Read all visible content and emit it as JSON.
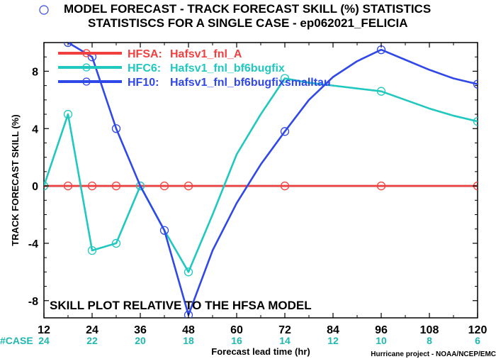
{
  "chart_data": {
    "type": "line",
    "title_line1": "MODEL FORECAST - TRACK FORECAST SKILL (%) STATISTICS",
    "title_line2": "STATISTISCS FOR A SINGLE CASE - ep062021_FELICIA",
    "xlabel": "Forecast lead time (hr)",
    "ylabel": "TRACK FORECAST SKILL (%)",
    "xlim": [
      12,
      120
    ],
    "ylim": [
      -9.2,
      10
    ],
    "xticks": [
      12,
      24,
      36,
      48,
      60,
      72,
      84,
      96,
      108,
      120
    ],
    "yticks": [
      -8,
      -4,
      0,
      4,
      8
    ],
    "case_label": "#CASE",
    "case_counts": [
      {
        "x": 12,
        "n": "24"
      },
      {
        "x": 24,
        "n": "22"
      },
      {
        "x": 36,
        "n": "20"
      },
      {
        "x": 48,
        "n": "18"
      },
      {
        "x": 60,
        "n": "16"
      },
      {
        "x": 72,
        "n": "14"
      },
      {
        "x": 84,
        "n": "12"
      },
      {
        "x": 96,
        "n": "10"
      },
      {
        "x": 108,
        "n": "8"
      },
      {
        "x": 120,
        "n": "6"
      }
    ],
    "annotation": "SKILL PLOT RELATIVE TO THE HFSA MODEL",
    "credit": "Hurricane project - NOAA/NCEP/EMC",
    "series": [
      {
        "name": "HFSA:",
        "desc": "Hafsv1_fnl_A",
        "color": "#f04040",
        "x": [
          12,
          18,
          24,
          30,
          36,
          42,
          48,
          72,
          96,
          120
        ],
        "y": [
          0,
          0,
          0,
          0,
          0,
          0,
          0,
          0,
          0,
          0
        ]
      },
      {
        "name": "HFC6:",
        "desc": "Hafsv1_fnl_bf6bugfix",
        "color": "#20c8c0",
        "x": [
          12,
          18,
          24,
          30,
          36,
          42,
          48,
          54,
          60,
          66,
          72,
          78,
          84,
          90,
          96,
          102,
          108,
          114,
          120
        ],
        "y": [
          0,
          5,
          -4.5,
          -4,
          0,
          -3.1,
          -6,
          -2,
          2.2,
          5,
          7.5,
          7.2,
          7,
          6.8,
          6.6,
          6,
          5.4,
          4.9,
          4.5
        ],
        "markers": [
          12,
          18,
          24,
          30,
          36,
          48,
          72,
          96,
          120
        ]
      },
      {
        "name": "HF10:",
        "desc": "Hafsv1_fnl_bf6bugfixsmalltau",
        "color": "#3048e8",
        "x": [
          18,
          24,
          30,
          36,
          42,
          48,
          54,
          60,
          66,
          72,
          78,
          84,
          90,
          96,
          102,
          108,
          114,
          120
        ],
        "y": [
          10,
          9,
          4,
          0,
          -3.1,
          -9,
          -4.5,
          -1.2,
          1.5,
          3.8,
          6,
          7.6,
          8.7,
          9.5,
          8.8,
          8.1,
          7.5,
          7.1
        ],
        "markers": [
          18,
          24,
          30,
          42,
          48,
          72,
          96,
          120
        ]
      }
    ],
    "zero_line_color": "#000000"
  }
}
